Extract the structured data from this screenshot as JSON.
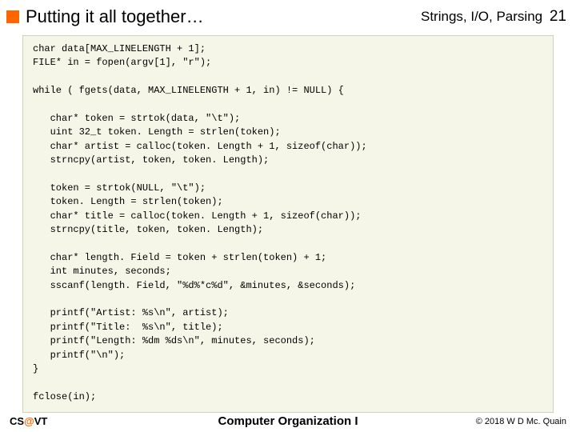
{
  "header": {
    "title": "Putting it all together…",
    "topic": "Strings, I/O, Parsing",
    "page_number": "21",
    "accent_color": "#ff6600"
  },
  "code": {
    "background_color": "#f5f6e8",
    "border_color": "#d0d0c0",
    "font_family": "Courier New",
    "font_size": 12,
    "lines": [
      "char data[MAX_LINELENGTH + 1];",
      "FILE* in = fopen(argv[1], \"r\");",
      "",
      "while ( fgets(data, MAX_LINELENGTH + 1, in) != NULL) {",
      "",
      "   char* token = strtok(data, \"\\t\");",
      "   uint 32_t token. Length = strlen(token);",
      "   char* artist = calloc(token. Length + 1, sizeof(char));",
      "   strncpy(artist, token, token. Length);",
      "",
      "   token = strtok(NULL, \"\\t\");",
      "   token. Length = strlen(token);",
      "   char* title = calloc(token. Length + 1, sizeof(char));",
      "   strncpy(title, token, token. Length);",
      "",
      "   char* length. Field = token + strlen(token) + 1;",
      "   int minutes, seconds;",
      "   sscanf(length. Field, \"%d%*c%d\", &minutes, &seconds);",
      "",
      "   printf(\"Artist: %s\\n\", artist);",
      "   printf(\"Title:  %s\\n\", title);",
      "   printf(\"Length: %dm %ds\\n\", minutes, seconds);",
      "   printf(\"\\n\");",
      "}",
      "",
      "fclose(in);"
    ]
  },
  "footer": {
    "left_prefix": "CS",
    "left_at": "@",
    "left_suffix": "VT",
    "center": "Computer Organization I",
    "right": "© 2018 W D Mc. Quain"
  }
}
